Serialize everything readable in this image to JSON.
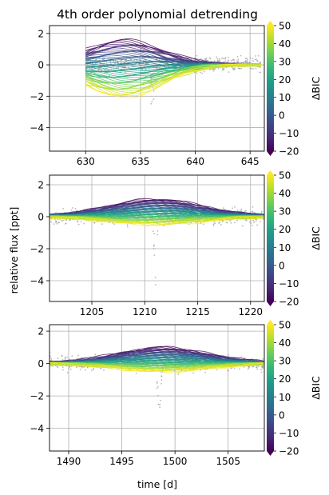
{
  "figure": {
    "title": "4th order polynomial detrending",
    "shared_ylabel": "relative flux [ppt]",
    "bottom_xlabel": "time [d]",
    "colorbar_label": "ΔBIC"
  },
  "colormap": [
    "#440154",
    "#482878",
    "#3e4989",
    "#31688e",
    "#26828e",
    "#1f9e89",
    "#35b779",
    "#6ece58",
    "#b5de2b",
    "#fde725"
  ],
  "chart_data": [
    {
      "type": "scatter",
      "title": "4th order polynomial detrending",
      "xlabel": "",
      "ylabel": "",
      "xlim": [
        626.7,
        646.3
      ],
      "ylim": [
        -5.5,
        2.5
      ],
      "xticks": [
        630,
        635,
        640,
        645
      ],
      "yticks": [
        -4,
        -2,
        0,
        2
      ],
      "grid": true,
      "data_range": [
        630,
        646
      ],
      "transit": {
        "t0": 636.1,
        "depth": 4.3,
        "width": 0.25
      },
      "model_fan": {
        "upper_amplitude": 1.6,
        "lower_amplitude": 2.1,
        "peak_t": 633.5,
        "n_models": 60
      },
      "colorbar": {
        "label": "ΔBIC",
        "range": [
          -20,
          50
        ],
        "ticks": [
          -20,
          -10,
          0,
          10,
          20,
          30,
          40,
          50
        ]
      }
    },
    {
      "type": "scatter",
      "title": "",
      "xlabel": "",
      "ylabel": "relative flux [ppt]",
      "xlim": [
        1201,
        1221.3
      ],
      "ylim": [
        -5.3,
        2.6
      ],
      "xticks": [
        1205,
        1210,
        1215,
        1220
      ],
      "yticks": [
        -4,
        -2,
        0,
        2
      ],
      "grid": true,
      "data_range": [
        1201,
        1221.3
      ],
      "transit": {
        "t0": 1211.0,
        "depth": 4.7,
        "width": 0.25
      },
      "model_fan": {
        "upper_amplitude": 1.1,
        "lower_amplitude": 0.5,
        "peak_t": 1211.0,
        "n_models": 60
      },
      "colorbar": {
        "label": "ΔBIC",
        "range": [
          -20,
          50
        ],
        "ticks": [
          -20,
          -10,
          0,
          10,
          20,
          30,
          40,
          50
        ]
      }
    },
    {
      "type": "scatter",
      "title": "",
      "xlabel": "time [d]",
      "ylabel": "",
      "xlim": [
        1488.2,
        1508.4
      ],
      "ylim": [
        -5.4,
        2.4
      ],
      "xticks": [
        1490,
        1495,
        1500,
        1505
      ],
      "yticks": [
        -4,
        -2,
        0,
        2
      ],
      "grid": true,
      "data_range": [
        1488.2,
        1508.4
      ],
      "transit": {
        "t0": 1498.5,
        "depth": 4.3,
        "width": 0.25
      },
      "model_fan": {
        "upper_amplitude": 1.0,
        "lower_amplitude": 0.5,
        "peak_t": 1498.8,
        "n_models": 60
      },
      "colorbar": {
        "label": "ΔBIC",
        "range": [
          -20,
          50
        ],
        "ticks": [
          -20,
          -10,
          0,
          10,
          20,
          30,
          40,
          50
        ]
      }
    }
  ]
}
